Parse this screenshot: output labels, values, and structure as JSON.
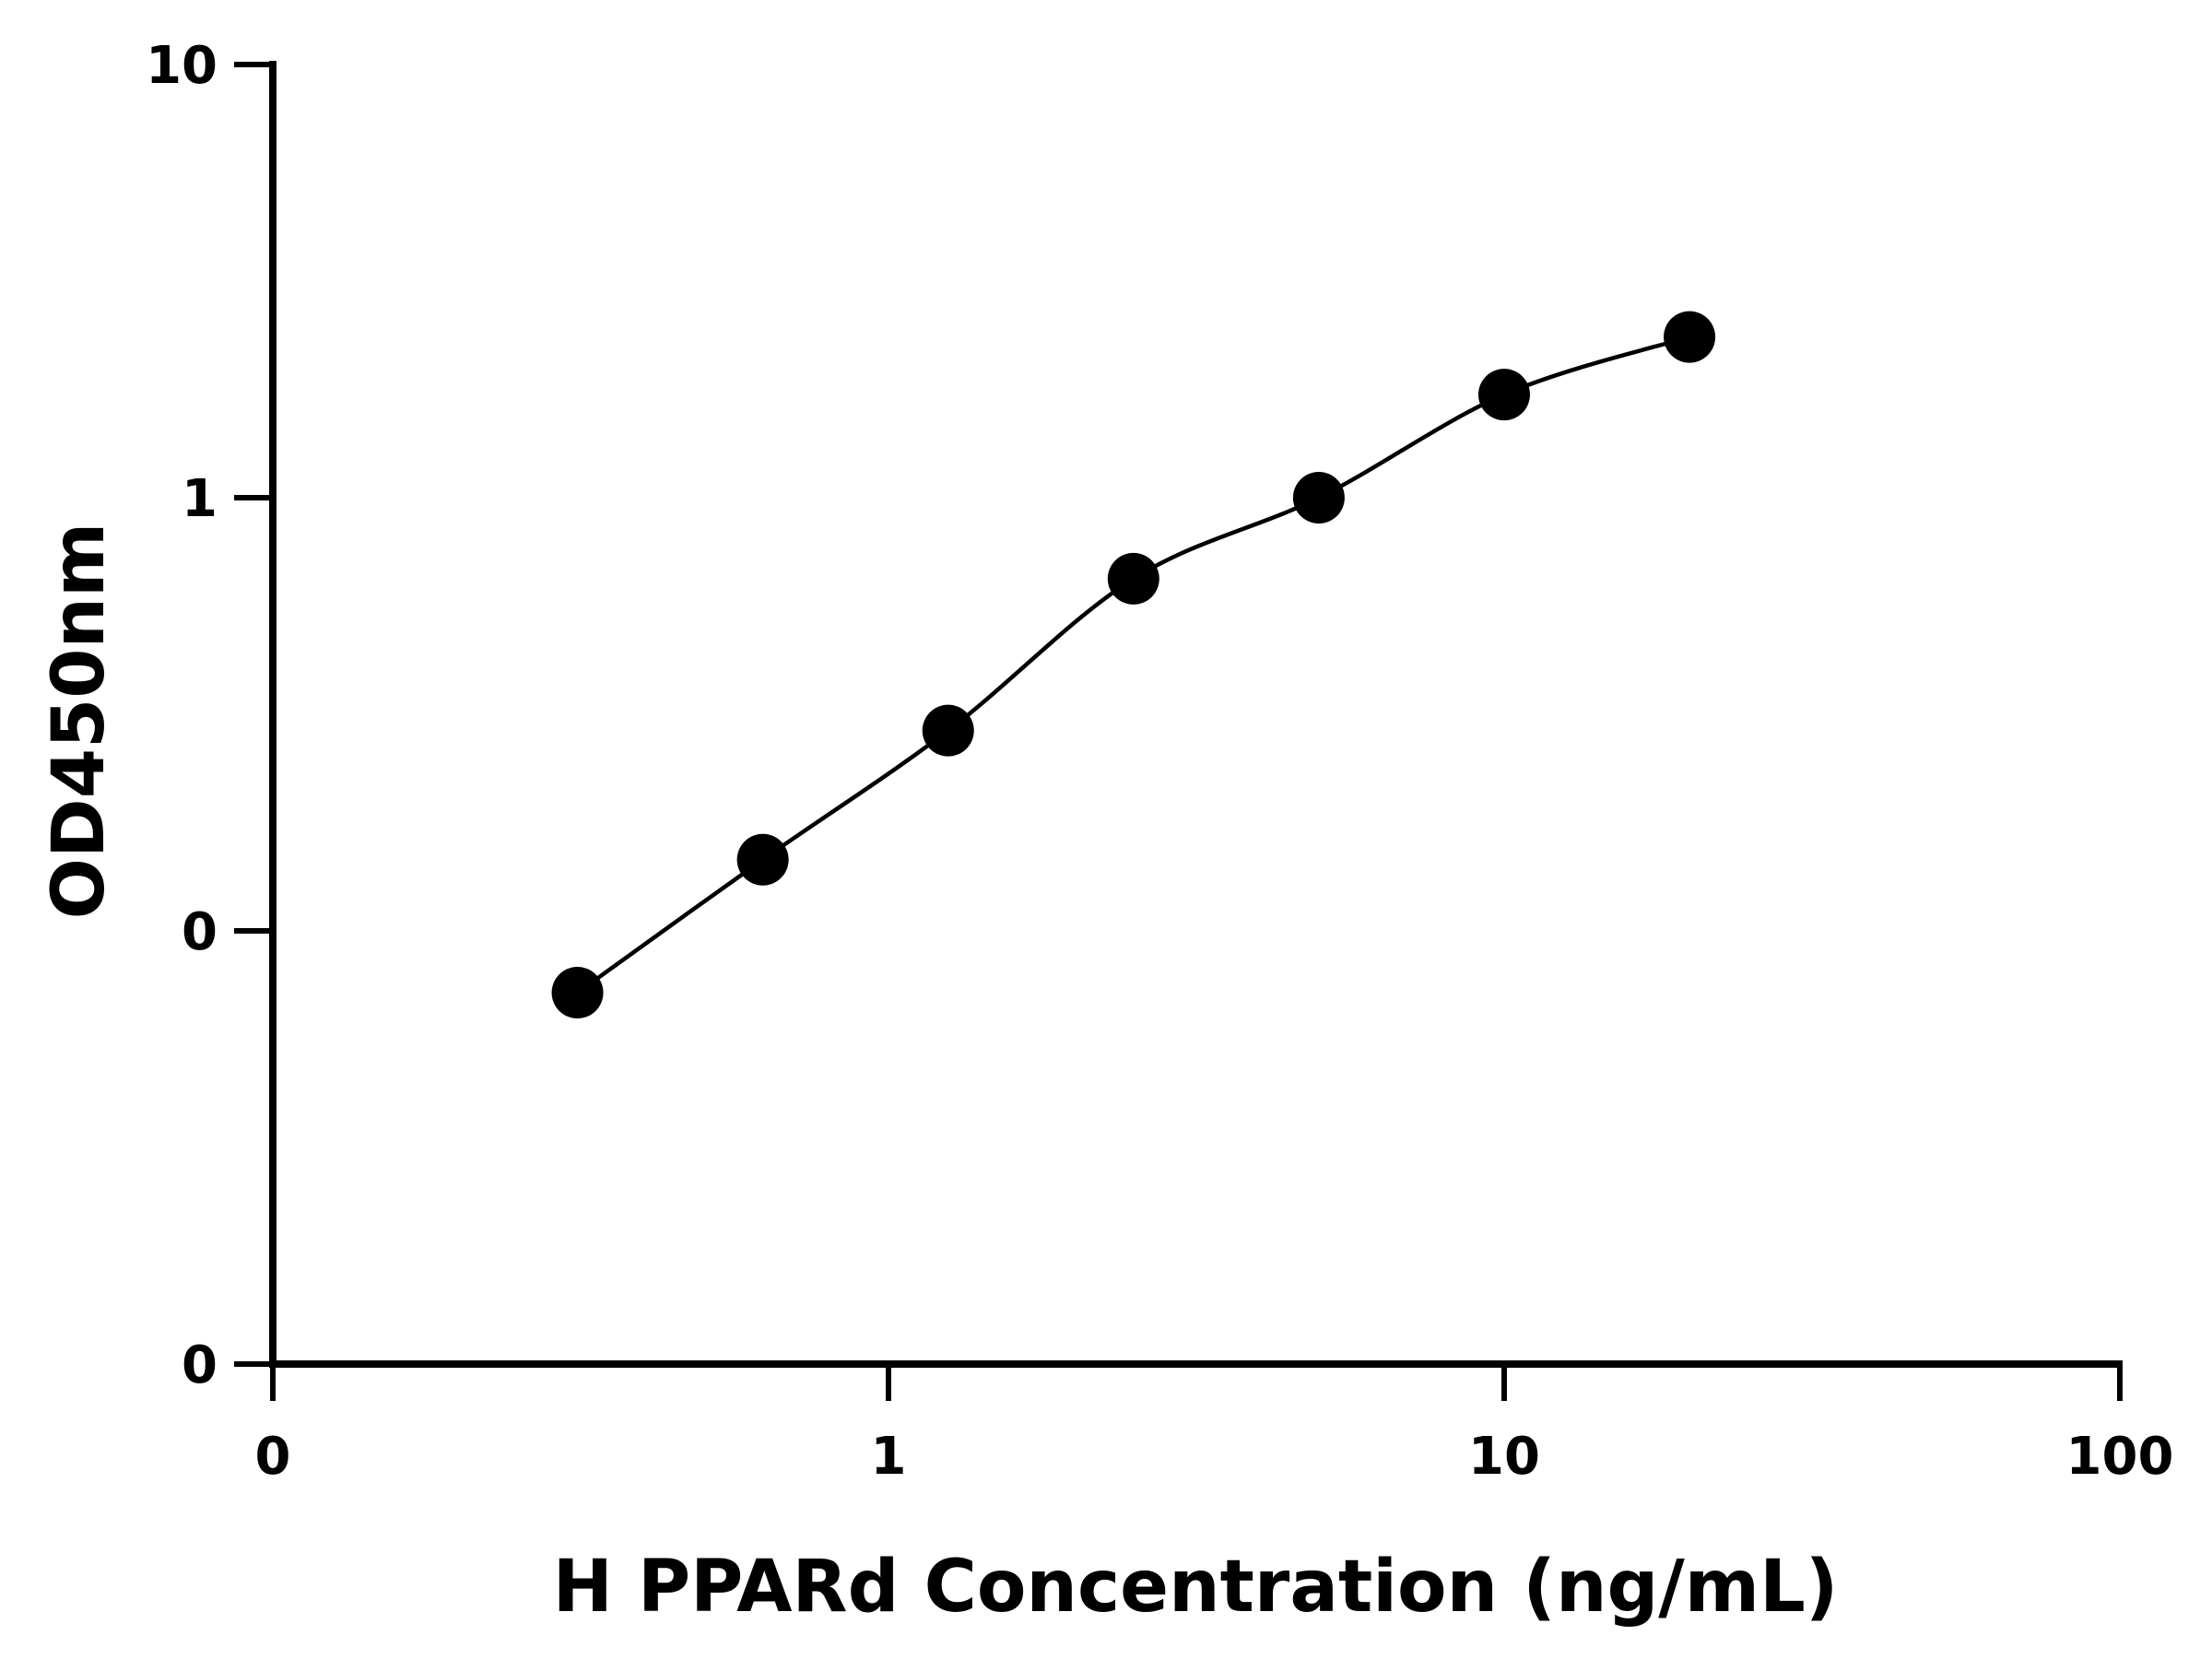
{
  "chart_data": {
    "type": "scatter",
    "title": "",
    "xlabel": "H PPARd Concentration (ng/mL)",
    "ylabel": "OD450nm",
    "x_scale": "log",
    "y_scale": "log",
    "xlim": [
      0.1,
      100
    ],
    "ylim": [
      0.01,
      10
    ],
    "x_ticks": [
      {
        "value": 0.1,
        "label": "0"
      },
      {
        "value": 1,
        "label": "1"
      },
      {
        "value": 10,
        "label": "10"
      },
      {
        "value": 100,
        "label": "100"
      }
    ],
    "y_ticks": [
      {
        "value": 0.01,
        "label": "0"
      },
      {
        "value": 0.1,
        "label": "0"
      },
      {
        "value": 1,
        "label": "1"
      },
      {
        "value": 10,
        "label": "10"
      }
    ],
    "grid": false,
    "legend": null,
    "series": [
      {
        "x": [
          0.3125,
          0.625,
          1.25,
          2.5,
          5,
          10,
          20
        ],
        "y": [
          0.072,
          0.146,
          0.29,
          0.65,
          1.0,
          1.73,
          2.35
        ],
        "marker": "circle",
        "color": "#000000",
        "fit_curve": true
      }
    ]
  }
}
